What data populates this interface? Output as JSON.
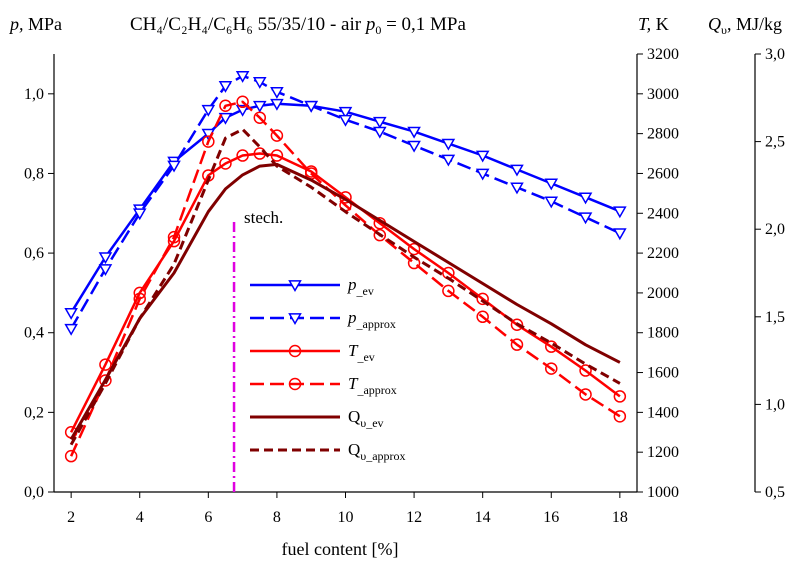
{
  "chart_data": {
    "type": "line",
    "title": {
      "fuel": "CH₄/C₂H₄/C₆H₆",
      "mix": "55/35/10",
      "dash": "-",
      "air": "air",
      "p0": "p",
      "p0_sub": "0",
      "p0_val": "= 0,1 MPa"
    },
    "axes": {
      "x": {
        "label": "fuel content [%]",
        "range": [
          1.5,
          18.5
        ],
        "ticks": [
          "2",
          "4",
          "6",
          "8",
          "10",
          "12",
          "14",
          "16",
          "18"
        ]
      },
      "y_left": {
        "label_sym": "p,",
        "label_unit": "MPa",
        "range": [
          0,
          1.1
        ],
        "ticks": [
          "0,0",
          "0,2",
          "0,4",
          "0,6",
          "0,8",
          "1,0"
        ]
      },
      "y_right1": {
        "label_sym": "T,",
        "label_unit": "K",
        "range": [
          1000,
          3200
        ],
        "ticks": [
          "1000",
          "1200",
          "1400",
          "1600",
          "1800",
          "2000",
          "2200",
          "2400",
          "2600",
          "2800",
          "3000",
          "3200"
        ]
      },
      "y_right2": {
        "label_sym": "Q",
        "label_sub": "υ",
        "label_unit": ", MJ/kg",
        "range": [
          0.5,
          3.0
        ],
        "ticks": [
          "0,5",
          "1,0",
          "1,5",
          "2,0",
          "2,5",
          "3,0"
        ]
      }
    },
    "annotation": {
      "text": "stech.",
      "x": 6.75
    },
    "series": [
      {
        "name": "p_ev",
        "label_main": "p",
        "label_sub": "_ev",
        "axis": "y_left",
        "color": "#0000ff",
        "dash": "solid",
        "marker": "triangle-down",
        "x": [
          2,
          3,
          4,
          5,
          6,
          6.5,
          7,
          7.5,
          8,
          9,
          10,
          11,
          12,
          13,
          14,
          15,
          16,
          17,
          18
        ],
        "y": [
          0.45,
          0.59,
          0.71,
          0.83,
          0.9,
          0.94,
          0.96,
          0.97,
          0.975,
          0.97,
          0.955,
          0.93,
          0.905,
          0.875,
          0.845,
          0.81,
          0.775,
          0.74,
          0.705
        ]
      },
      {
        "name": "p_approx",
        "label_main": "p",
        "label_sub": "_approx",
        "axis": "y_left",
        "color": "#0000ff",
        "dash": "dashed",
        "marker": "triangle-down",
        "x": [
          2,
          3,
          4,
          5,
          6,
          6.5,
          7,
          7.5,
          8,
          9,
          10,
          11,
          12,
          13,
          14,
          15,
          16,
          17,
          18
        ],
        "y": [
          0.41,
          0.56,
          0.7,
          0.82,
          0.96,
          1.02,
          1.045,
          1.03,
          1.005,
          0.97,
          0.935,
          0.905,
          0.87,
          0.835,
          0.8,
          0.765,
          0.73,
          0.69,
          0.65
        ]
      },
      {
        "name": "T_ev",
        "label_main": "T",
        "label_sub": "_ev",
        "axis": "y_right1",
        "color": "#ff0000",
        "dash": "solid",
        "marker": "circle",
        "x": [
          2,
          3,
          4,
          5,
          6,
          6.5,
          7,
          7.5,
          8,
          9,
          10,
          11,
          12,
          13,
          14,
          15,
          16,
          17,
          18
        ],
        "y": [
          1300,
          1640,
          2000,
          2260,
          2590,
          2650,
          2690,
          2700,
          2690,
          2610,
          2480,
          2350,
          2220,
          2100,
          1970,
          1840,
          1730,
          1610,
          1480
        ]
      },
      {
        "name": "T_approx",
        "label_main": "T",
        "label_sub": "_approx",
        "axis": "y_right1",
        "color": "#ff0000",
        "dash": "dashed",
        "marker": "circle",
        "x": [
          2,
          3,
          4,
          5,
          6,
          6.5,
          7,
          7.5,
          8,
          9,
          10,
          11,
          12,
          13,
          14,
          15,
          16,
          17,
          18
        ],
        "y": [
          1180,
          1560,
          1970,
          2280,
          2760,
          2940,
          2960,
          2880,
          2790,
          2600,
          2440,
          2290,
          2150,
          2010,
          1880,
          1740,
          1620,
          1490,
          1380
        ]
      },
      {
        "name": "Q_ev",
        "label_main": "Q",
        "label_sub": "υ_ev",
        "axis": "y_right2",
        "color": "#800000",
        "dash": "solid",
        "marker": "none",
        "x": [
          2,
          3,
          4,
          5,
          6,
          6.5,
          7,
          7.5,
          8,
          9,
          10,
          11,
          12,
          13,
          14,
          15,
          16,
          17,
          18
        ],
        "y": [
          0.8,
          1.14,
          1.49,
          1.75,
          2.1,
          2.23,
          2.31,
          2.36,
          2.37,
          2.28,
          2.17,
          2.05,
          1.93,
          1.81,
          1.69,
          1.57,
          1.46,
          1.34,
          1.24
        ]
      },
      {
        "name": "Q_approx",
        "label_main": "Q",
        "label_sub": "υ_approx",
        "axis": "y_right2",
        "color": "#800000",
        "dash": "dashed",
        "marker": "none",
        "x": [
          2,
          3,
          4,
          5,
          6,
          6.5,
          7,
          7.5,
          8,
          9,
          10,
          11,
          12,
          13,
          14,
          15,
          16,
          17,
          18
        ],
        "y": [
          0.77,
          1.12,
          1.49,
          1.8,
          2.28,
          2.52,
          2.57,
          2.47,
          2.36,
          2.24,
          2.1,
          1.97,
          1.84,
          1.72,
          1.59,
          1.46,
          1.35,
          1.23,
          1.12
        ]
      }
    ],
    "grid": false,
    "legend_position": "center-left"
  }
}
